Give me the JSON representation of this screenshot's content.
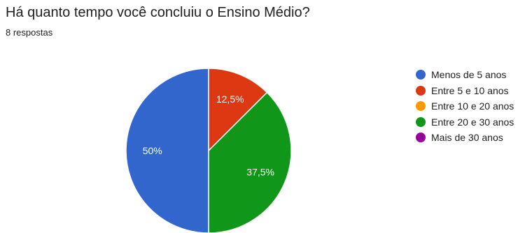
{
  "header": {
    "title": "Há quanto tempo você concluiu o Ensino Médio?",
    "responses": "8 respostas"
  },
  "chart_data": {
    "type": "pie",
    "categories": [
      "Menos de 5 anos",
      "Entre 5 e 10 anos",
      "Entre 10 e 20 anos",
      "Entre 20 e 30 anos",
      "Mais de 30 anos"
    ],
    "values": [
      50,
      12.5,
      0,
      37.5,
      0
    ],
    "labels": [
      "50%",
      "12,5%",
      "",
      "37,5%",
      ""
    ],
    "colors": [
      "#3366cc",
      "#dc3912",
      "#ff9900",
      "#109618",
      "#990099"
    ],
    "legend_position": "right"
  }
}
